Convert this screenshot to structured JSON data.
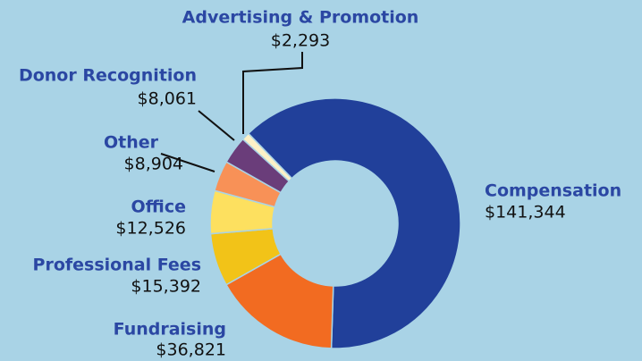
{
  "chart_data": {
    "type": "donut",
    "categories": [
      "Compensation",
      "Fundraising",
      "Professional Fees",
      "Office",
      "Other",
      "Donor Recognition",
      "Advertising & Promotion"
    ],
    "values": [
      141344,
      36821,
      15392,
      12526,
      8904,
      8061,
      2293
    ],
    "value_labels": [
      "$141,344",
      "$36,821",
      "$15,392",
      "$12,526",
      "$8,904",
      "$8,061",
      "$2,293"
    ],
    "colors": [
      "#21409a",
      "#f26b21",
      "#f2c318",
      "#fde05f",
      "#f89157",
      "#6a3d7a",
      "#fdf1c7"
    ]
  }
}
